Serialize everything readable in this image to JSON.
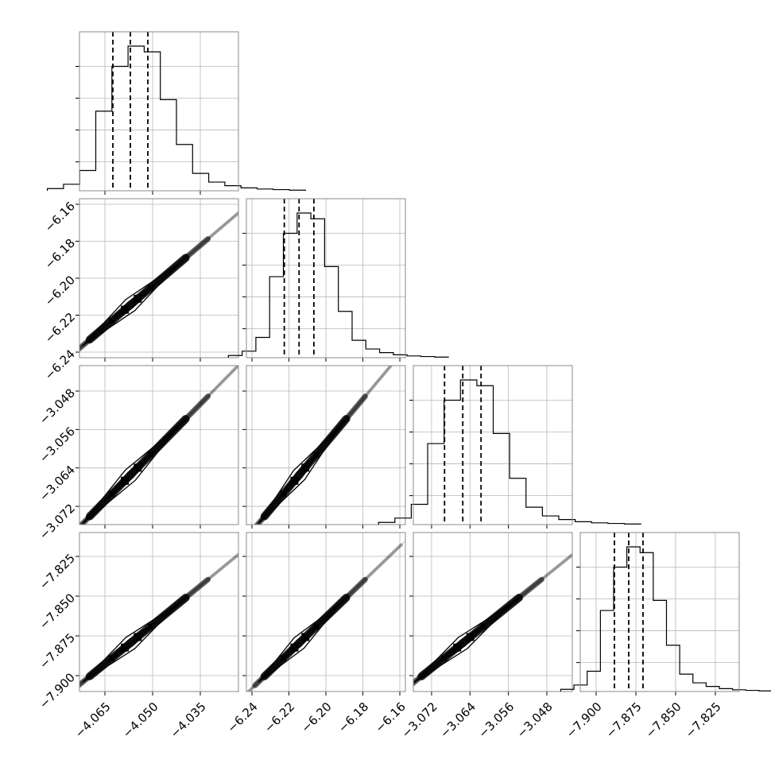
{
  "chart_data": {
    "type": "corner",
    "grid": true,
    "parameters": [
      {
        "range": [
          -4.073,
          -4.023
        ],
        "ticks": [
          -4.065,
          -4.05,
          -4.035
        ],
        "tick_labels": [
          "−4.065",
          "−4.050",
          "−4.035"
        ],
        "quantiles": [
          -4.0625,
          -4.057,
          -4.0515
        ],
        "mean": -4.057,
        "sigma": 0.0058,
        "histogram": [
          0.015,
          0.045,
          0.14,
          0.55,
          0.86,
          1.0,
          0.96,
          0.63,
          0.32,
          0.12,
          0.06,
          0.035,
          0.02,
          0.012,
          0.008,
          0.004
        ]
      },
      {
        "range": [
          -6.243,
          -6.157
        ],
        "ticks": [
          -6.24,
          -6.22,
          -6.2,
          -6.18,
          -6.16
        ],
        "tick_labels": [
          "−6.24",
          "−6.22",
          "−6.20",
          "−6.18",
          "−6.16"
        ],
        "quantiles": [
          -6.2225,
          -6.2145,
          -6.2065
        ],
        "mean": -6.2145,
        "sigma": 0.0085,
        "histogram": [
          0.015,
          0.045,
          0.14,
          0.56,
          0.86,
          1.0,
          0.96,
          0.63,
          0.32,
          0.12,
          0.06,
          0.035,
          0.02,
          0.012,
          0.008,
          0.004
        ]
      },
      {
        "range": [
          -3.0758,
          -3.0427
        ],
        "ticks": [
          -3.072,
          -3.064,
          -3.056,
          -3.048
        ],
        "tick_labels": [
          "−3.072",
          "−3.064",
          "−3.056",
          "−3.048"
        ],
        "quantiles": [
          -3.0693,
          -3.0655,
          -3.0617
        ],
        "mean": -3.0655,
        "sigma": 0.0039,
        "histogram": [
          0.015,
          0.045,
          0.14,
          0.56,
          0.86,
          1.0,
          0.96,
          0.63,
          0.32,
          0.12,
          0.06,
          0.035,
          0.02,
          0.012,
          0.008,
          0.004
        ]
      },
      {
        "range": [
          -7.91,
          -7.81
        ],
        "ticks": [
          -7.9,
          -7.875,
          -7.85,
          -7.825
        ],
        "tick_labels": [
          "−7.900",
          "−7.875",
          "−7.850",
          "−7.825"
        ],
        "quantiles": [
          -7.8885,
          -7.8795,
          -7.8705
        ],
        "mean": -7.8795,
        "sigma": 0.0095,
        "histogram": [
          0.015,
          0.045,
          0.14,
          0.56,
          0.86,
          1.0,
          0.96,
          0.63,
          0.32,
          0.12,
          0.06,
          0.035,
          0.02,
          0.012,
          0.008,
          0.004
        ]
      }
    ],
    "colors": {
      "ink": "#000000",
      "grid": "#b8b8b8",
      "frame": "#8a8a8a",
      "contour_fill": "#8c8c8c",
      "contour_inner": "#d9d9d9"
    }
  }
}
